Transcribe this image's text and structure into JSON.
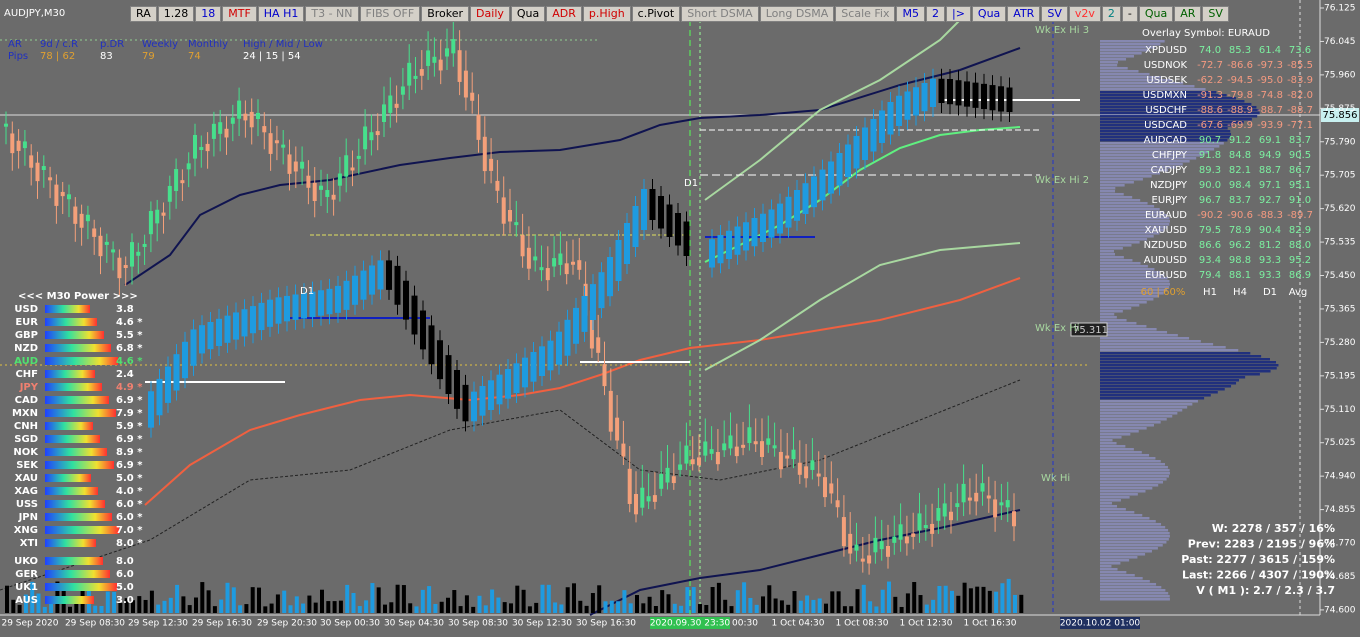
{
  "header": {
    "symbol": "AUDJPY,M30"
  },
  "toolbar": [
    {
      "label": "RA",
      "color": "#000"
    },
    {
      "label": "1.28",
      "color": "#000"
    },
    {
      "label": "18",
      "color": "#0000cc"
    },
    {
      "label": "MTF",
      "color": "#d00000"
    },
    {
      "label": "HA H1",
      "color": "#0000cc"
    },
    {
      "label": "T3 - NN",
      "color": "#808080"
    },
    {
      "label": "FIBS OFF",
      "color": "#808080"
    },
    {
      "label": "Broker",
      "color": "#000"
    },
    {
      "label": "Daily",
      "color": "#d00000"
    },
    {
      "label": "Qua",
      "color": "#000"
    },
    {
      "label": "ADR",
      "color": "#d00000"
    },
    {
      "label": "p.High",
      "color": "#d00000"
    },
    {
      "label": "c.Pivot",
      "color": "#000"
    },
    {
      "label": "Short DSMA",
      "color": "#808080"
    },
    {
      "label": "Long DSMA",
      "color": "#808080"
    },
    {
      "label": "Scale Fix",
      "color": "#808080"
    },
    {
      "label": "M5",
      "color": "#0000cc"
    },
    {
      "label": "2",
      "color": "#0000cc"
    },
    {
      "label": "|>",
      "color": "#0000cc"
    },
    {
      "label": "Qua",
      "color": "#0000cc"
    },
    {
      "label": "ATR",
      "color": "#0000cc"
    },
    {
      "label": "SV",
      "color": "#0000cc"
    },
    {
      "label": "v2v",
      "color": "#ff3030"
    },
    {
      "label": "2",
      "color": "#008080"
    },
    {
      "label": "-",
      "color": "#000"
    },
    {
      "label": "Qua",
      "color": "#006000"
    },
    {
      "label": "AR",
      "color": "#006000"
    },
    {
      "label": "SV",
      "color": "#006000"
    }
  ],
  "info": {
    "headers": [
      "AR",
      "9d / c.R",
      "p.DR",
      "Weekly",
      "Monthly",
      "High / Mid / Low"
    ],
    "values": [
      "Pips",
      "78 | 62",
      "83",
      "79",
      "74",
      "24 | 15 | 54"
    ]
  },
  "power": {
    "title": "<<<  M30  Power  >>>",
    "rows": [
      {
        "name": "USD",
        "value": "3.8"
      },
      {
        "name": "EUR",
        "value": "4.6 *"
      },
      {
        "name": "GBP",
        "value": "5.5 *"
      },
      {
        "name": "NZD",
        "value": "6.8 *"
      },
      {
        "name": "AUD",
        "value": "4.6 *",
        "color": "#50e070"
      },
      {
        "name": "CHF",
        "value": "2.4"
      },
      {
        "name": "JPY",
        "value": "4.9 *",
        "color": "#f08070"
      },
      {
        "name": "CAD",
        "value": "6.9 *"
      },
      {
        "name": "MXN",
        "value": "7.9 *"
      },
      {
        "name": "CNH",
        "value": "5.9 *"
      },
      {
        "name": "SGD",
        "value": "6.9 *"
      },
      {
        "name": "NOK",
        "value": "8.9 *"
      },
      {
        "name": "SEK",
        "value": "6.9 *"
      },
      {
        "name": "XAU",
        "value": "5.0 *"
      },
      {
        "name": "XAG",
        "value": "4.0 *"
      },
      {
        "name": "USS",
        "value": "6.0 *"
      },
      {
        "name": "JPN",
        "value": "6.0 *"
      },
      {
        "name": "XNG",
        "value": "7.0 *"
      },
      {
        "name": "XTI",
        "value": "8.0 *"
      },
      {
        "name": "UKO",
        "value": "8.0"
      },
      {
        "name": "GER",
        "value": "6.0"
      },
      {
        "name": "UK1",
        "value": "5.0"
      },
      {
        "name": "AUS",
        "value": "3.0"
      }
    ]
  },
  "overlay": {
    "title": "Overlay Symbol: EURAUD",
    "rows": [
      [
        "XPDUSD",
        "74.0",
        "85.3",
        "61.4",
        "73.6"
      ],
      [
        "USDNOK",
        "-72.7",
        "-86.6",
        "-97.3",
        "-85.5"
      ],
      [
        "USDSEK",
        "-62.2",
        "-94.5",
        "-95.0",
        "-83.9"
      ],
      [
        "USDMXN",
        "-91.3",
        "-79.8",
        "-74.8",
        "-82.0"
      ],
      [
        "USDCHF",
        "-88.6",
        "-88.9",
        "-88.7",
        "-88.7"
      ],
      [
        "USDCAD",
        "-67.6",
        "-69.9",
        "-93.9",
        "-77.1"
      ],
      [
        "AUDCAD",
        "90.7",
        "91.2",
        "69.1",
        "83.7"
      ],
      [
        "CHFJPY",
        "91.8",
        "84.8",
        "94.9",
        "90.5"
      ],
      [
        "CADJPY",
        "89.3",
        "82.1",
        "88.7",
        "86.7"
      ],
      [
        "NZDJPY",
        "90.0",
        "98.4",
        "97.1",
        "95.1"
      ],
      [
        "EURJPY",
        "96.7",
        "83.7",
        "92.7",
        "91.0"
      ],
      [
        "EURAUD",
        "-90.2",
        "-90.6",
        "-88.3",
        "-89.7"
      ],
      [
        "XAUUSD",
        "79.5",
        "78.9",
        "90.4",
        "82.9"
      ],
      [
        "NZDUSD",
        "86.6",
        "96.2",
        "81.2",
        "88.0"
      ],
      [
        "AUDUSD",
        "93.4",
        "98.8",
        "93.3",
        "95.2"
      ],
      [
        "EURUSD",
        "79.4",
        "88.1",
        "93.3",
        "86.9"
      ]
    ],
    "footer": [
      "60 | 60%",
      "H1",
      "H4",
      "D1",
      "Avg"
    ]
  },
  "price_axis": [
    "76.125",
    "76.045",
    "75.960",
    "75.875",
    "75.790",
    "75.705",
    "75.620",
    "75.535",
    "75.450",
    "75.365",
    "75.280",
    "75.195",
    "75.110",
    "75.025",
    "74.940",
    "74.855",
    "74.770",
    "74.685",
    "74.600"
  ],
  "current_price": "75.856",
  "time_axis": [
    "29 Sep 2020",
    "29 Sep 08:30",
    "29 Sep 12:30",
    "29 Sep 16:30",
    "29 Sep 20:30",
    "30 Sep 00:30",
    "30 Sep 04:30",
    "30 Sep 08:30",
    "30 Sep 12:30",
    "30 Sep 16:30",
    "2020.09.30 23:30",
    "00:30",
    "1 Oct 04:30",
    "1 Oct 08:30",
    "1 Oct 12:30",
    "1 Oct 16:30",
    "2020.10.02 01:00"
  ],
  "chart_labels": {
    "d1_left": "D1",
    "d1_right": "D1",
    "wk_ex_hi_3": "Wk Ex Hi 3",
    "wk_ex_hi_2": "Wk Ex Hi 2",
    "wk_ex_hi": "Wk Ex Hi",
    "wk_ex_hi_price": "75.311",
    "wk_hi": "Wk Hi"
  },
  "stats": [
    "W: 2278 / 357 / 16%",
    "Prev: 2283 / 2195 / 96%",
    "Past: 2277 / 3615 / 159%",
    "Last: 2266 / 4307 / 190%",
    "V ( M1 ): 2.7 / 2.3 / 3.7"
  ]
}
